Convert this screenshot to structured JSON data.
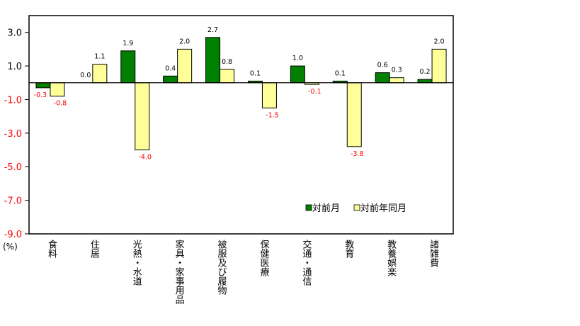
{
  "chart_data": {
    "type": "bar",
    "categories": [
      "食料",
      "住居",
      "光熱・水道",
      "家具・家事用品",
      "被服及び履物",
      "保健医療",
      "交通・通信",
      "教育",
      "教養娯楽",
      "諸雑費"
    ],
    "series": [
      {
        "name": "対前月",
        "color": "#008000",
        "values": [
          -0.3,
          0.0,
          1.9,
          0.4,
          2.7,
          0.1,
          1.0,
          0.1,
          0.6,
          0.2
        ]
      },
      {
        "name": "対前年同月",
        "color": "#FFFF99",
        "values": [
          -0.8,
          1.1,
          -4.0,
          2.0,
          0.8,
          -1.5,
          -0.1,
          -3.8,
          0.3,
          2.0
        ]
      }
    ],
    "value_labels": {
      "0": [
        "-0.3",
        "0.0",
        "1.9",
        "0.4",
        "2.7",
        "0.1",
        "1.0",
        "0.1",
        "0.6",
        "0.2"
      ],
      "1": [
        "-0.8",
        "1.1",
        "-4.0",
        "2.0",
        "0.8",
        "-1.5",
        "-0.1",
        "-3.8",
        "0.3",
        "2.0"
      ]
    },
    "yticks": [
      3.0,
      1.0,
      -1.0,
      -3.0,
      -5.0,
      -7.0,
      -9.0
    ],
    "ytick_labels": [
      "3.0",
      "1.0",
      "-1.0",
      "-3.0",
      "-5.0",
      "-7.0",
      "-9.0"
    ],
    "ylim": [
      -9,
      4
    ],
    "yunit": "(%)",
    "legend_position": "lower-right inside",
    "negative_label_color": "#FF0000",
    "grid": false
  }
}
